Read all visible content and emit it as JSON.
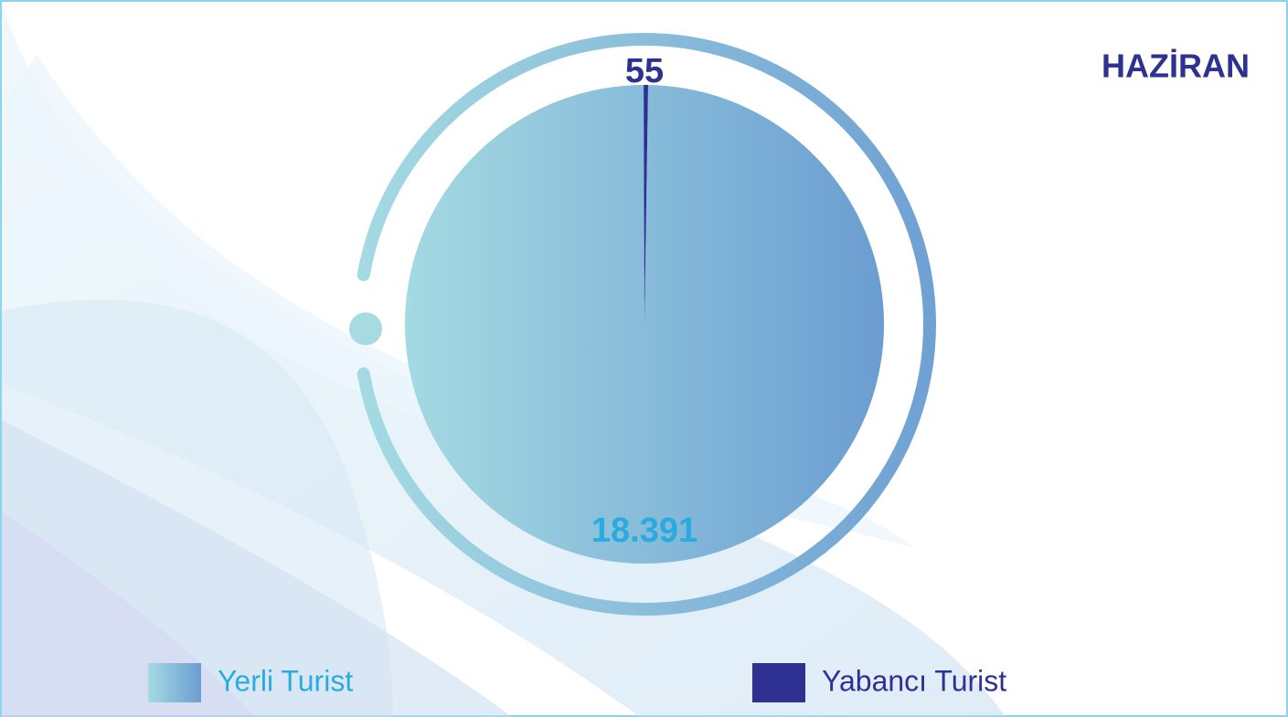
{
  "chart_data": {
    "type": "pie",
    "title": "HAZİRAN",
    "categories": [
      "Yerli Turist",
      "Yabancı Turist"
    ],
    "values": [
      18391,
      55
    ],
    "value_labels": [
      "18.391",
      "55"
    ],
    "colors": [
      "#6b9dd1",
      "#2e3192"
    ]
  }
}
